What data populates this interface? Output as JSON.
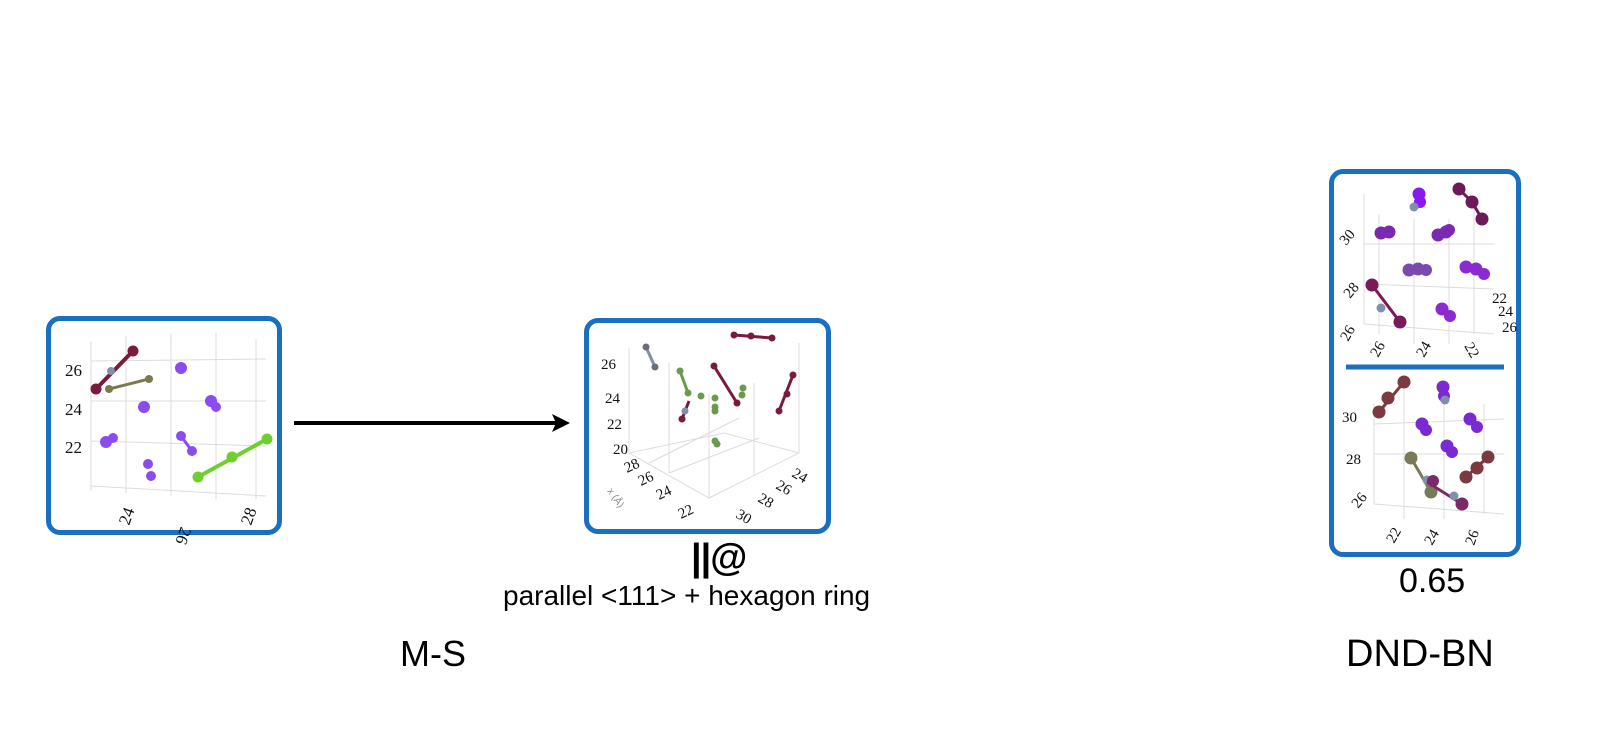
{
  "left_panel": {
    "y_ticks": [
      "26",
      "24",
      "22"
    ],
    "x_ticks": [
      "24",
      "26",
      "28"
    ]
  },
  "middle_panel": {
    "y_ticks": [
      "26",
      "24",
      "22",
      "20"
    ],
    "x_ticks_left": [
      "28",
      "26",
      "24",
      "22"
    ],
    "x_ticks_right": [
      "24",
      "26",
      "28",
      "30"
    ],
    "axis_label": "x (Å)"
  },
  "right_top_panel": {
    "z_ticks": [
      "30",
      "28",
      "26"
    ],
    "x_ticks": [
      "26",
      "24",
      "22"
    ],
    "y_ticks": [
      "22",
      "24",
      "26"
    ]
  },
  "right_bottom_panel": {
    "z_ticks": [
      "30",
      "28",
      "26"
    ],
    "x_ticks": [
      "22",
      "24",
      "26"
    ]
  },
  "labels": {
    "symbol": "||@",
    "description": "parallel <111> + hexagon ring",
    "left_caption": "M-S",
    "right_caption": "DND-BN",
    "score": "0.65"
  },
  "colors": {
    "frame": "#1a6fc0",
    "maroon": "#7a1a3c",
    "purple": "#8a4cf0",
    "green": "#6fcf2e",
    "olive": "#7a7a4c",
    "gray": "#8090a8"
  }
}
